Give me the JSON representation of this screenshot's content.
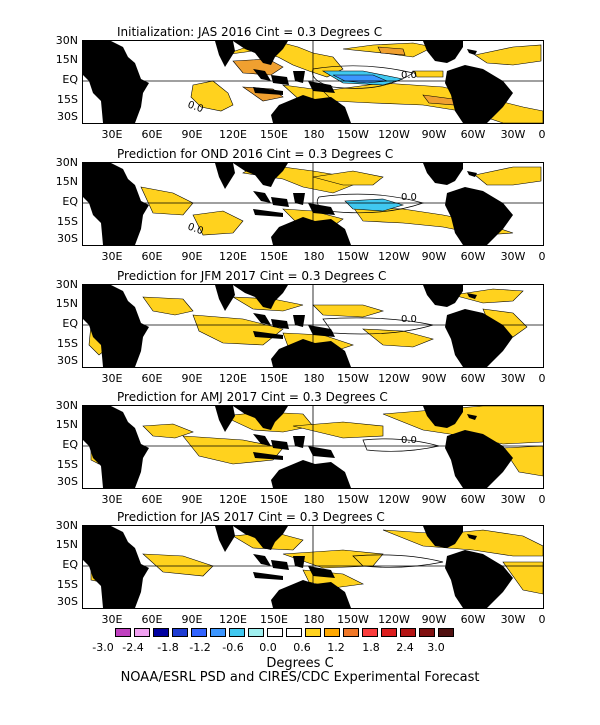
{
  "panels": [
    {
      "title": "Initialization: JAS 2016  Cint = 0.3 Degrees C",
      "contour_label": "0.0",
      "west_label": "0.0"
    },
    {
      "title": "Prediction for OND 2016  Cint = 0.3 Degrees C",
      "contour_label": "0.0",
      "west_label": "0.0"
    },
    {
      "title": "Prediction for JFM 2017  Cint = 0.3 Degrees C",
      "contour_label": "0.0",
      "west_label": ""
    },
    {
      "title": "Prediction for AMJ 2017  Cint = 0.3 Degrees C",
      "contour_label": "0.0",
      "west_label": ""
    },
    {
      "title": "Prediction for JAS 2017  Cint = 0.3 Degrees C",
      "contour_label": "",
      "west_label": ""
    }
  ],
  "lat_labels": [
    "30N",
    "15N",
    "EQ",
    "15S",
    "30S"
  ],
  "lon_labels": [
    "30E",
    "60E",
    "90E",
    "120E",
    "150E",
    "180",
    "150W",
    "120W",
    "90W",
    "60W",
    "30W",
    "0"
  ],
  "colorbar": {
    "colors": [
      "#c040c0",
      "#f0a0f0",
      "#0000a0",
      "#1e3cd2",
      "#3264ff",
      "#3c96ff",
      "#40c8f0",
      "#a0f0f0",
      "#ffffff",
      "#ffffff",
      "#ffd21e",
      "#ffa800",
      "#f07828",
      "#fa3c3c",
      "#dc1e1e",
      "#b41414",
      "#801010",
      "#501010"
    ],
    "tick_labels": [
      "-3.0",
      "-2.4",
      "-1.8",
      "-1.2",
      "-0.6",
      "0.0",
      "0.6",
      "1.2",
      "1.8",
      "2.4",
      "3.0"
    ],
    "units": "Degrees C"
  },
  "colors": {
    "warm1": "#ffd21e",
    "warm2": "#f0a030",
    "cool1": "#40c8f0",
    "cool2": "#3c96ff",
    "land": "#000000"
  },
  "footer": "NOAA/ESRL PSD and CIRES/CDC Experimental Forecast"
}
